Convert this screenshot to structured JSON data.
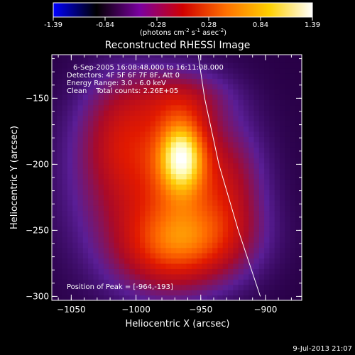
{
  "colorbar": {
    "ticks": [
      "-1.39",
      "-0.84",
      "-0.28",
      "0.28",
      "0.84",
      "1.39"
    ],
    "unit_parts": [
      "(photons cm",
      "-2",
      " s",
      "-1",
      " asec",
      "-2",
      ")"
    ],
    "colors": [
      "#0000ff",
      "#000000",
      "#7a00a0",
      "#d00000",
      "#ff7000",
      "#ffd000",
      "#ffffff"
    ]
  },
  "chart_data": {
    "type": "heatmap",
    "title": "Reconstructed RHESSI Image",
    "xlabel": "Heliocentric X (arcsec)",
    "ylabel": "Heliocentric Y (arcsec)",
    "xlim": [
      -1065,
      -872
    ],
    "ylim": [
      -303,
      -117
    ],
    "xticks": [
      {
        "value": -1050,
        "label": "−1050"
      },
      {
        "value": -1000,
        "label": "−1000"
      },
      {
        "value": -950,
        "label": "−950"
      },
      {
        "value": -900,
        "label": "−900"
      }
    ],
    "yticks": [
      {
        "value": -150,
        "label": "−150"
      },
      {
        "value": -200,
        "label": "−200"
      },
      {
        "value": -250,
        "label": "−250"
      },
      {
        "value": -300,
        "label": "−300"
      }
    ],
    "info_lines": [
      "6-Sep-2005 16:08:48.000 to 16:11:08.000",
      "Detectors: 4F 5F 6F 7F 8F, Att 0",
      "Energy Range: 3.0 - 6.0 keV",
      "Clean    Total counts: 2.26E+05"
    ],
    "peak_label": "Position of Peak = [-964,-193]",
    "peak": [
      -964,
      -193
    ],
    "limb_curve": [
      [
        -952,
        -117
      ],
      [
        -947,
        -150
      ],
      [
        -936,
        -200
      ],
      [
        -921,
        -250
      ],
      [
        -904,
        -300
      ]
    ],
    "sources": [
      {
        "x": -964,
        "y": -193,
        "sx": 14,
        "sy": 22,
        "amp": 1.0
      },
      {
        "x": -985,
        "y": -215,
        "sx": 40,
        "sy": 45,
        "amp": 0.55
      },
      {
        "x": -950,
        "y": -255,
        "sx": 30,
        "sy": 22,
        "amp": 0.45
      },
      {
        "x": -975,
        "y": -265,
        "sx": 28,
        "sy": 22,
        "amp": 0.4
      },
      {
        "x": -1010,
        "y": -175,
        "sx": 22,
        "sy": 30,
        "amp": 0.35
      },
      {
        "x": -928,
        "y": -215,
        "sx": 18,
        "sy": 30,
        "amp": 0.3
      },
      {
        "x": -965,
        "y": -150,
        "sx": 25,
        "sy": 15,
        "amp": 0.3
      }
    ]
  },
  "timestamp": "9-Jul-2013 21:07"
}
